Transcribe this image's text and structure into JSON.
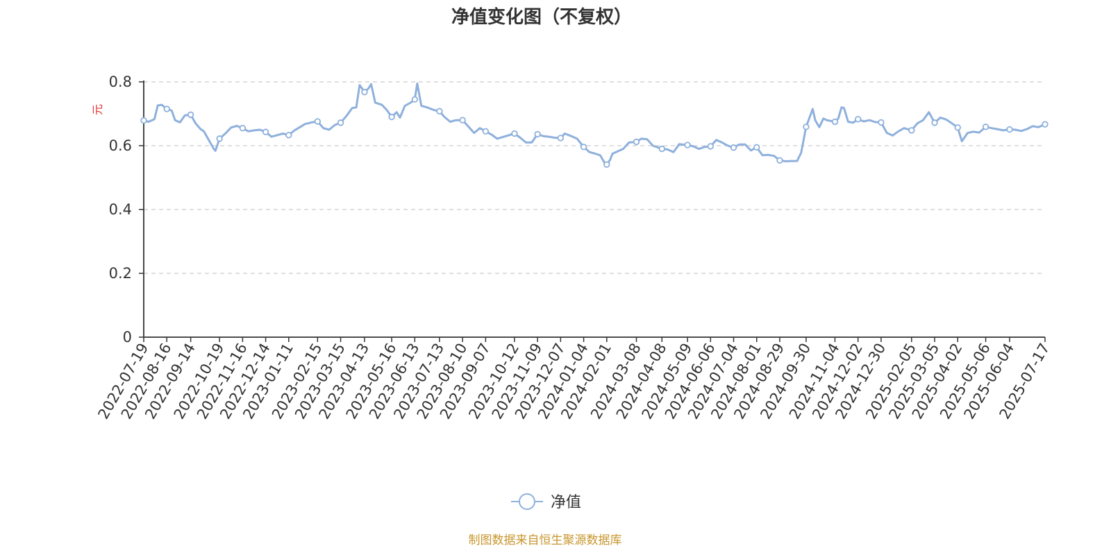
{
  "chart_data": {
    "type": "line",
    "title": "净值变化图（不复权）",
    "ylabel": "元",
    "ylim": [
      0,
      0.8
    ],
    "yticks": [
      "0",
      "0.2",
      "0.4",
      "0.6",
      "0.8"
    ],
    "xticks": [
      "2022-07-19",
      "2022-08-16",
      "2022-09-14",
      "2022-10-19",
      "2022-11-16",
      "2022-12-14",
      "2023-01-11",
      "2023-02-15",
      "2023-03-15",
      "2023-04-13",
      "2023-05-16",
      "2023-06-13",
      "2023-07-13",
      "2023-08-10",
      "2023-09-07",
      "2023-10-12",
      "2023-11-09",
      "2023-12-07",
      "2024-01-04",
      "2024-02-01",
      "2024-03-08",
      "2024-04-08",
      "2024-05-09",
      "2024-06-06",
      "2024-07-04",
      "2024-08-01",
      "2024-08-29",
      "2024-09-30",
      "2024-11-04",
      "2024-12-02",
      "2024-12-30",
      "2025-02-05",
      "2025-03-05",
      "2025-04-02",
      "2025-05-06",
      "2025-06-04",
      "2025-07-17"
    ],
    "grid": "horizontal dashed",
    "legend_position": "bottom-center",
    "line_color": "#8eb0dc",
    "series": [
      {
        "name": "净值",
        "points": [
          [
            "2022-07-19",
            0.679
          ],
          [
            "2022-07-25",
            0.675
          ],
          [
            "2022-08-01",
            0.683
          ],
          [
            "2022-08-05",
            0.726
          ],
          [
            "2022-08-10",
            0.728
          ],
          [
            "2022-08-16",
            0.715
          ],
          [
            "2022-08-22",
            0.71
          ],
          [
            "2022-08-26",
            0.68
          ],
          [
            "2022-09-01",
            0.673
          ],
          [
            "2022-09-07",
            0.695
          ],
          [
            "2022-09-14",
            0.697
          ],
          [
            "2022-09-20",
            0.67
          ],
          [
            "2022-09-26",
            0.652
          ],
          [
            "2022-09-30",
            0.645
          ],
          [
            "2022-10-12",
            0.59
          ],
          [
            "2022-10-14",
            0.584
          ],
          [
            "2022-10-19",
            0.622
          ],
          [
            "2022-10-26",
            0.638
          ],
          [
            "2022-11-02",
            0.657
          ],
          [
            "2022-11-09",
            0.662
          ],
          [
            "2022-11-16",
            0.655
          ],
          [
            "2022-11-23",
            0.645
          ],
          [
            "2022-11-30",
            0.648
          ],
          [
            "2022-12-07",
            0.65
          ],
          [
            "2022-12-14",
            0.643
          ],
          [
            "2022-12-21",
            0.628
          ],
          [
            "2022-12-28",
            0.633
          ],
          [
            "2023-01-04",
            0.638
          ],
          [
            "2023-01-11",
            0.633
          ],
          [
            "2023-01-18",
            0.648
          ],
          [
            "2023-01-31",
            0.668
          ],
          [
            "2023-02-08",
            0.673
          ],
          [
            "2023-02-15",
            0.676
          ],
          [
            "2023-02-22",
            0.655
          ],
          [
            "2023-03-01",
            0.65
          ],
          [
            "2023-03-08",
            0.665
          ],
          [
            "2023-03-15",
            0.672
          ],
          [
            "2023-03-22",
            0.693
          ],
          [
            "2023-03-29",
            0.718
          ],
          [
            "2023-04-03",
            0.72
          ],
          [
            "2023-04-07",
            0.79
          ],
          [
            "2023-04-13",
            0.768
          ],
          [
            "2023-04-18",
            0.78
          ],
          [
            "2023-04-21",
            0.793
          ],
          [
            "2023-04-26",
            0.735
          ],
          [
            "2023-05-04",
            0.728
          ],
          [
            "2023-05-10",
            0.712
          ],
          [
            "2023-05-16",
            0.69
          ],
          [
            "2023-05-22",
            0.705
          ],
          [
            "2023-05-26",
            0.688
          ],
          [
            "2023-06-01",
            0.725
          ],
          [
            "2023-06-08",
            0.735
          ],
          [
            "2023-06-13",
            0.745
          ],
          [
            "2023-06-16",
            0.795
          ],
          [
            "2023-06-21",
            0.725
          ],
          [
            "2023-06-28",
            0.72
          ],
          [
            "2023-07-06",
            0.712
          ],
          [
            "2023-07-13",
            0.708
          ],
          [
            "2023-07-19",
            0.69
          ],
          [
            "2023-07-26",
            0.675
          ],
          [
            "2023-08-02",
            0.68
          ],
          [
            "2023-08-10",
            0.68
          ],
          [
            "2023-08-17",
            0.66
          ],
          [
            "2023-08-24",
            0.64
          ],
          [
            "2023-08-31",
            0.655
          ],
          [
            "2023-09-07",
            0.645
          ],
          [
            "2023-09-14",
            0.635
          ],
          [
            "2023-09-21",
            0.622
          ],
          [
            "2023-10-12",
            0.638
          ],
          [
            "2023-10-19",
            0.625
          ],
          [
            "2023-10-26",
            0.61
          ],
          [
            "2023-11-02",
            0.61
          ],
          [
            "2023-11-09",
            0.636
          ],
          [
            "2023-11-16",
            0.63
          ],
          [
            "2023-11-23",
            0.628
          ],
          [
            "2023-11-30",
            0.625
          ],
          [
            "2023-12-07",
            0.624
          ],
          [
            "2023-12-12",
            0.638
          ],
          [
            "2023-12-20",
            0.63
          ],
          [
            "2023-12-27",
            0.622
          ],
          [
            "2024-01-04",
            0.596
          ],
          [
            "2024-01-11",
            0.58
          ],
          [
            "2024-01-18",
            0.575
          ],
          [
            "2024-01-24",
            0.57
          ],
          [
            "2024-01-29",
            0.548
          ],
          [
            "2024-02-01",
            0.541
          ],
          [
            "2024-02-05",
            0.555
          ],
          [
            "2024-02-08",
            0.575
          ],
          [
            "2024-02-21",
            0.59
          ],
          [
            "2024-02-28",
            0.61
          ],
          [
            "2024-03-08",
            0.612
          ],
          [
            "2024-03-14",
            0.622
          ],
          [
            "2024-03-21",
            0.62
          ],
          [
            "2024-03-28",
            0.6
          ],
          [
            "2024-04-08",
            0.59
          ],
          [
            "2024-04-15",
            0.588
          ],
          [
            "2024-04-22",
            0.58
          ],
          [
            "2024-04-29",
            0.605
          ],
          [
            "2024-05-09",
            0.602
          ],
          [
            "2024-05-16",
            0.598
          ],
          [
            "2024-05-23",
            0.59
          ],
          [
            "2024-05-30",
            0.596
          ],
          [
            "2024-06-06",
            0.598
          ],
          [
            "2024-06-13",
            0.618
          ],
          [
            "2024-06-20",
            0.61
          ],
          [
            "2024-06-27",
            0.6
          ],
          [
            "2024-07-04",
            0.594
          ],
          [
            "2024-07-11",
            0.604
          ],
          [
            "2024-07-18",
            0.604
          ],
          [
            "2024-07-25",
            0.585
          ],
          [
            "2024-08-01",
            0.595
          ],
          [
            "2024-08-08",
            0.57
          ],
          [
            "2024-08-15",
            0.571
          ],
          [
            "2024-08-22",
            0.568
          ],
          [
            "2024-08-29",
            0.554
          ],
          [
            "2024-09-05",
            0.551
          ],
          [
            "2024-09-12",
            0.552
          ],
          [
            "2024-09-19",
            0.552
          ],
          [
            "2024-09-24",
            0.578
          ],
          [
            "2024-09-30",
            0.659
          ],
          [
            "2024-10-08",
            0.715
          ],
          [
            "2024-10-11",
            0.68
          ],
          [
            "2024-10-16",
            0.658
          ],
          [
            "2024-10-21",
            0.685
          ],
          [
            "2024-10-25",
            0.68
          ],
          [
            "2024-11-04",
            0.675
          ],
          [
            "2024-11-08",
            0.685
          ],
          [
            "2024-11-12",
            0.72
          ],
          [
            "2024-11-15",
            0.718
          ],
          [
            "2024-11-20",
            0.675
          ],
          [
            "2024-11-26",
            0.672
          ],
          [
            "2024-12-02",
            0.683
          ],
          [
            "2024-12-09",
            0.676
          ],
          [
            "2024-12-16",
            0.68
          ],
          [
            "2024-12-23",
            0.674
          ],
          [
            "2024-12-30",
            0.673
          ],
          [
            "2025-01-06",
            0.64
          ],
          [
            "2025-01-13",
            0.632
          ],
          [
            "2025-01-20",
            0.645
          ],
          [
            "2025-01-27",
            0.655
          ],
          [
            "2025-02-05",
            0.648
          ],
          [
            "2025-02-12",
            0.67
          ],
          [
            "2025-02-19",
            0.68
          ],
          [
            "2025-02-26",
            0.705
          ],
          [
            "2025-03-05",
            0.672
          ],
          [
            "2025-03-12",
            0.688
          ],
          [
            "2025-03-19",
            0.682
          ],
          [
            "2025-03-26",
            0.67
          ],
          [
            "2025-04-02",
            0.657
          ],
          [
            "2025-04-07",
            0.614
          ],
          [
            "2025-04-14",
            0.64
          ],
          [
            "2025-04-21",
            0.644
          ],
          [
            "2025-04-28",
            0.641
          ],
          [
            "2025-05-06",
            0.659
          ],
          [
            "2025-05-13",
            0.655
          ],
          [
            "2025-05-20",
            0.652
          ],
          [
            "2025-05-27",
            0.648
          ],
          [
            "2025-06-04",
            0.651
          ],
          [
            "2025-06-11",
            0.65
          ],
          [
            "2025-06-18",
            0.646
          ],
          [
            "2025-06-25",
            0.652
          ],
          [
            "2025-07-02",
            0.661
          ],
          [
            "2025-07-09",
            0.658
          ],
          [
            "2025-07-17",
            0.667
          ]
        ],
        "marker_dates": [
          "2022-07-19",
          "2022-08-16",
          "2022-09-14",
          "2022-10-19",
          "2022-11-16",
          "2022-12-14",
          "2023-01-11",
          "2023-02-15",
          "2023-03-15",
          "2023-04-13",
          "2023-05-16",
          "2023-06-13",
          "2023-07-13",
          "2023-08-10",
          "2023-09-07",
          "2023-10-12",
          "2023-11-09",
          "2023-12-07",
          "2024-01-04",
          "2024-02-01",
          "2024-03-08",
          "2024-04-08",
          "2024-05-09",
          "2024-06-06",
          "2024-07-04",
          "2024-08-01",
          "2024-08-29",
          "2024-09-30",
          "2024-11-04",
          "2024-12-02",
          "2024-12-30",
          "2025-02-05",
          "2025-03-05",
          "2025-04-02",
          "2025-05-06",
          "2025-06-04",
          "2025-07-17"
        ]
      }
    ]
  },
  "footer": {
    "source": "制图数据来自恒生聚源数据库"
  }
}
